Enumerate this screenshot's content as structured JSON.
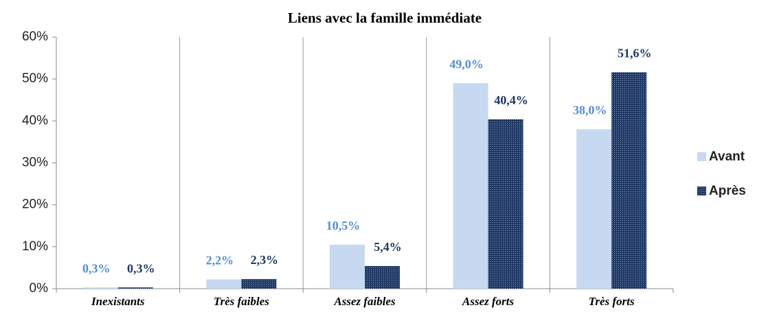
{
  "chart_data": {
    "type": "bar",
    "title": "Liens avec la famille immédiate",
    "categories": [
      "Inexistants",
      "Très faibles",
      "Assez faibles",
      "Assez forts",
      "Très forts"
    ],
    "series": [
      {
        "name": "Avant",
        "color": "#c6d9f1",
        "values": [
          0.3,
          2.2,
          10.5,
          49.0,
          38.0
        ],
        "value_labels": [
          "0,3%",
          "2,2%",
          "10,5%",
          "49,0%",
          "38,0%"
        ],
        "label_color": "#558ed5"
      },
      {
        "name": "Après",
        "color": "#1f3864",
        "values": [
          0.3,
          2.3,
          5.4,
          40.4,
          51.6
        ],
        "value_labels": [
          "0,3%",
          "2,3%",
          "5,4%",
          "40,4%",
          "51,6%"
        ],
        "label_color": "#1f3864"
      }
    ],
    "ylim": [
      0,
      60
    ],
    "yticks": [
      {
        "value": 0,
        "label": "0%"
      },
      {
        "value": 10,
        "label": "10%"
      },
      {
        "value": 20,
        "label": "20%"
      },
      {
        "value": 30,
        "label": "30%"
      },
      {
        "value": 40,
        "label": "40%"
      },
      {
        "value": 50,
        "label": "50%"
      },
      {
        "value": 60,
        "label": "60%"
      }
    ],
    "legend": "right"
  }
}
